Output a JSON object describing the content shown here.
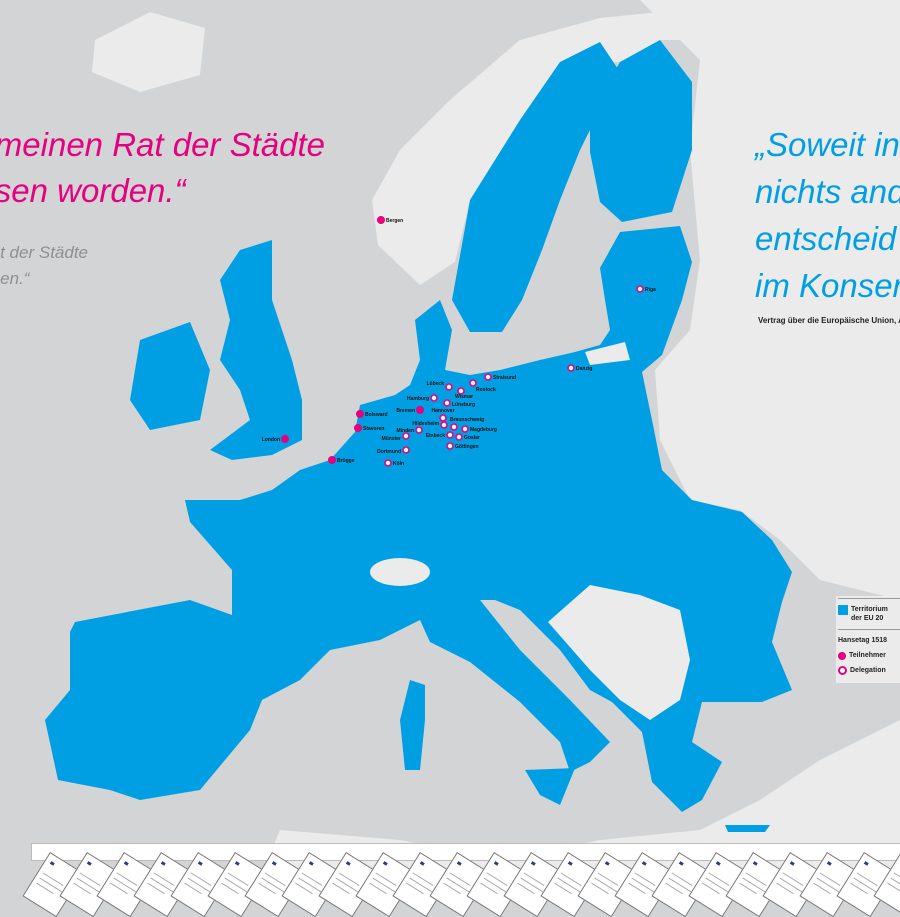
{
  "colors": {
    "eu": "#009fe3",
    "sea": "#d3d4d6",
    "non_eu_land": "#ebebeb",
    "participant": "#e5007d",
    "quote_left": "#e5007d",
    "quote_right": "#009fe3"
  },
  "quote_left": {
    "line1": "meinen Rat der Städte",
    "line2": "sen worden.“",
    "sub1": "t der Städte",
    "sub2": "en.“"
  },
  "quote_right": {
    "line1": "„Soweit in",
    "line2": "nichts and",
    "line3": "entscheid",
    "line4": "im Konsen",
    "source": "Vertrag über die Europäische Union, Art"
  },
  "legend": {
    "territory": "Territorium der EU 20",
    "hansetag": "Hansetag 1518",
    "participant": "Teilnehmer",
    "delegation": "Delegation"
  },
  "cities": [
    {
      "name": "Bergen",
      "type": "participant"
    },
    {
      "name": "Riga",
      "type": "delegation"
    },
    {
      "name": "Danzig",
      "type": "delegation"
    },
    {
      "name": "Stralsund",
      "type": "delegation"
    },
    {
      "name": "Rostock",
      "type": "delegation"
    },
    {
      "name": "Lübeck",
      "type": "delegation"
    },
    {
      "name": "Wismar",
      "type": "delegation"
    },
    {
      "name": "Hamburg",
      "type": "delegation"
    },
    {
      "name": "Lüneburg",
      "type": "delegation"
    },
    {
      "name": "Bremen",
      "type": "participant"
    },
    {
      "name": "Hannover",
      "type": "delegation"
    },
    {
      "name": "Bolsward",
      "type": "participant"
    },
    {
      "name": "Stavoren",
      "type": "participant"
    },
    {
      "name": "Hildesheim",
      "type": "delegation"
    },
    {
      "name": "Braunschweig",
      "type": "delegation"
    },
    {
      "name": "Magdeburg",
      "type": "delegation"
    },
    {
      "name": "Minden",
      "type": "delegation"
    },
    {
      "name": "Münster",
      "type": "delegation"
    },
    {
      "name": "Einbeck",
      "type": "delegation"
    },
    {
      "name": "Goslar",
      "type": "delegation"
    },
    {
      "name": "Göttingen",
      "type": "delegation"
    },
    {
      "name": "London",
      "type": "participant"
    },
    {
      "name": "Dortmund",
      "type": "delegation"
    },
    {
      "name": "Brügge",
      "type": "participant"
    },
    {
      "name": "Köln",
      "type": "delegation"
    }
  ]
}
